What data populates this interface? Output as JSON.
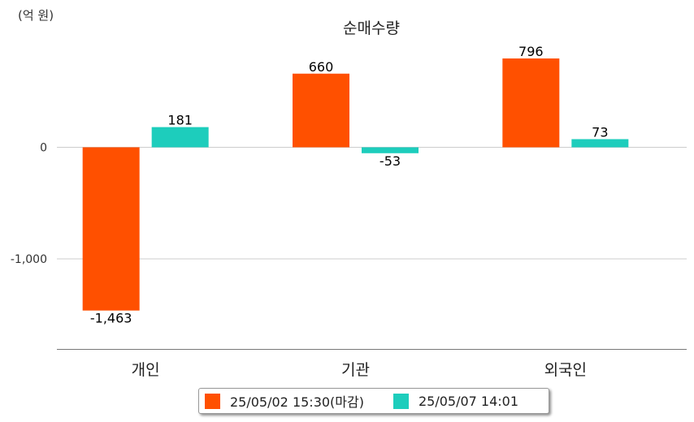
{
  "chart_data": {
    "type": "bar",
    "title": "순매수량",
    "unit_label": "(억 원)",
    "categories": [
      "개인",
      "기관",
      "외국인"
    ],
    "series": [
      {
        "name": "25/05/02 15:30(마감)",
        "color": "#ff5000",
        "values": [
          -1463,
          660,
          796
        ],
        "labels": [
          "-1,463",
          "660",
          "796"
        ]
      },
      {
        "name": "25/05/07 14:01",
        "color": "#1dcdbc",
        "values": [
          181,
          -53,
          73
        ],
        "labels": [
          "181",
          "-53",
          "73"
        ]
      }
    ],
    "yticks": [
      0,
      -1000
    ],
    "ytick_labels": [
      "0",
      "-1,000"
    ],
    "ylim": [
      -1800,
      1000
    ],
    "grid": true,
    "legend": "bottom"
  }
}
